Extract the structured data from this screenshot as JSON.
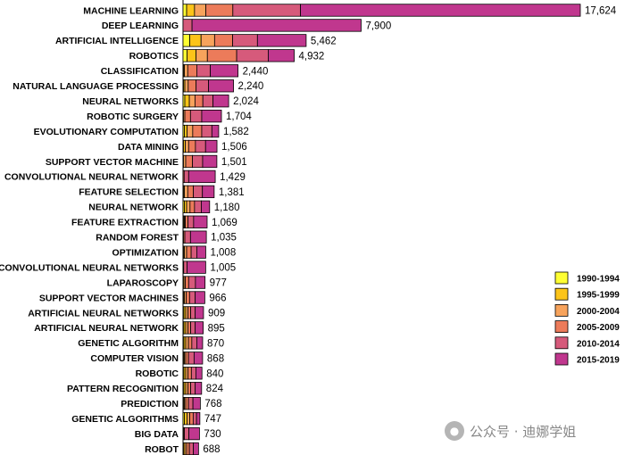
{
  "chart_data": {
    "type": "bar",
    "orientation": "horizontal",
    "stacked": true,
    "title": "",
    "xlabel": "",
    "ylabel": "",
    "xlim": [
      0,
      17624
    ],
    "grid": false,
    "legend_position": "bottom-right",
    "categories": [
      "MACHINE LEARNING",
      "DEEP LEARNING",
      "ARTIFICIAL INTELLIGENCE",
      "ROBOTICS",
      "CLASSIFICATION",
      "NATURAL LANGUAGE PROCESSING",
      "NEURAL NETWORKS",
      "ROBOTIC SURGERY",
      "EVOLUTIONARY COMPUTATION",
      "DATA MINING",
      "SUPPORT VECTOR MACHINE",
      "CONVOLUTIONAL NEURAL NETWORK",
      "FEATURE SELECTION",
      "NEURAL NETWORK",
      "FEATURE EXTRACTION",
      "RANDOM FOREST",
      "OPTIMIZATION",
      "CONVOLUTIONAL NEURAL NETWORKS",
      "LAPAROSCOPY",
      "SUPPORT VECTOR MACHINES",
      "ARTIFICIAL NEURAL NETWORKS",
      "ARTIFICIAL NEURAL NETWORK",
      "GENETIC ALGORITHM",
      "COMPUTER VISION",
      "ROBOTIC",
      "PATTERN RECOGNITION",
      "PREDICTION",
      "GENETIC ALGORITHMS",
      "BIG DATA",
      "ROBOT"
    ],
    "totals": [
      17624,
      7900,
      5462,
      4932,
      2440,
      2240,
      2024,
      1704,
      1582,
      1506,
      1501,
      1429,
      1381,
      1180,
      1069,
      1035,
      1008,
      1005,
      977,
      966,
      909,
      895,
      870,
      868,
      840,
      824,
      768,
      747,
      730,
      688
    ],
    "total_labels": [
      "17,624",
      "7,900",
      "5,462",
      "4,932",
      "2,440",
      "2,240",
      "2,024",
      "1,704",
      "1,582",
      "1,506",
      "1,501",
      "1,429",
      "1,381",
      "1,180",
      "1,069",
      "1,035",
      "1,008",
      "1,005",
      "977",
      "966",
      "909",
      "895",
      "870",
      "868",
      "840",
      "824",
      "768",
      "747",
      "730",
      "688"
    ],
    "series": [
      {
        "name": "1990-1994",
        "color": "#ffff33",
        "values": [
          160,
          0,
          300,
          180,
          20,
          20,
          80,
          0,
          60,
          20,
          0,
          0,
          20,
          60,
          20,
          0,
          20,
          0,
          0,
          20,
          40,
          40,
          40,
          20,
          40,
          40,
          20,
          60,
          0,
          20
        ]
      },
      {
        "name": "1995-1999",
        "color": "#fcc419",
        "values": [
          350,
          0,
          500,
          400,
          40,
          60,
          200,
          20,
          120,
          80,
          20,
          0,
          40,
          100,
          40,
          0,
          40,
          0,
          40,
          40,
          80,
          80,
          80,
          40,
          80,
          80,
          40,
          120,
          0,
          60
        ]
      },
      {
        "name": "2000-2004",
        "color": "#f7a35c",
        "values": [
          500,
          0,
          600,
          500,
          150,
          150,
          250,
          60,
          250,
          150,
          100,
          0,
          150,
          150,
          40,
          20,
          100,
          0,
          60,
          80,
          100,
          100,
          120,
          60,
          100,
          100,
          60,
          120,
          20,
          80
        ]
      },
      {
        "name": "2005-2009",
        "color": "#ec7b5a",
        "values": [
          1200,
          0,
          800,
          1300,
          400,
          350,
          350,
          250,
          400,
          300,
          300,
          50,
          250,
          200,
          120,
          60,
          200,
          30,
          150,
          150,
          120,
          120,
          150,
          120,
          150,
          120,
          120,
          150,
          40,
          120
        ]
      },
      {
        "name": "2010-2014",
        "color": "#d65a7b",
        "values": [
          3000,
          400,
          1100,
          1400,
          600,
          550,
          450,
          500,
          450,
          450,
          450,
          200,
          400,
          300,
          250,
          250,
          250,
          150,
          300,
          250,
          200,
          200,
          220,
          250,
          200,
          200,
          200,
          150,
          200,
          180
        ]
      },
      {
        "name": "2015-2019",
        "color": "#c0378e",
        "values": [
          12414,
          7500,
          2162,
          1152,
          1230,
          1110,
          694,
          874,
          302,
          506,
          631,
          1179,
          521,
          370,
          599,
          705,
          398,
          825,
          427,
          426,
          369,
          355,
          260,
          378,
          270,
          284,
          328,
          147,
          470,
          228
        ]
      }
    ]
  },
  "watermark": {
    "text": "公众号 · 迪娜学姐",
    "icon": "wechat-icon"
  }
}
